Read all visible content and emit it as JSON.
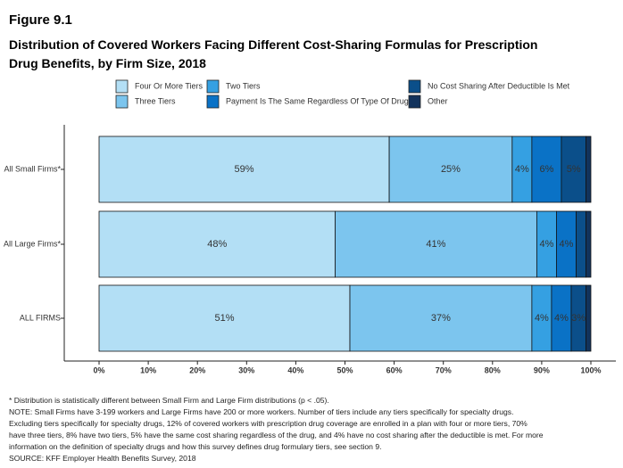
{
  "chart_data": {
    "type": "stacked-bar-horizontal",
    "figure_label": "Figure 9.1",
    "title": "Distribution of Covered Workers Facing Different Cost-Sharing Formulas for Prescription Drug Benefits, by Firm Size, 2018",
    "categories": [
      "All Small Firms*",
      "All Large Firms*",
      "ALL FIRMS"
    ],
    "series": [
      {
        "name": "Four Or More Tiers",
        "color": "#b3dff5",
        "values": [
          59,
          48,
          51
        ],
        "value_labels": [
          "59%",
          "48%",
          "51%"
        ]
      },
      {
        "name": "Three Tiers",
        "color": "#7cc5ee",
        "values": [
          25,
          41,
          37
        ],
        "value_labels": [
          "25%",
          "41%",
          "37%"
        ]
      },
      {
        "name": "Two Tiers",
        "color": "#35a0e2",
        "values": [
          4,
          4,
          4
        ],
        "value_labels": [
          "4%",
          "4%",
          "4%"
        ]
      },
      {
        "name": "Payment Is The Same Regardless Of Type Of Drug",
        "color": "#0a72c6",
        "values": [
          6,
          4,
          4
        ],
        "value_labels": [
          "6%",
          "4%",
          "4%"
        ]
      },
      {
        "name": "No Cost Sharing After Deductible Is Met",
        "color": "#0b4f8a",
        "values": [
          5,
          2,
          3
        ],
        "value_labels": [
          "5%",
          null,
          "3%"
        ]
      },
      {
        "name": "Other",
        "color": "#12335c",
        "values": [
          1,
          1,
          1
        ],
        "value_labels": [
          null,
          null,
          null
        ]
      }
    ],
    "xlim": [
      0,
      100
    ],
    "xticks": [
      {
        "value": 0,
        "label": "0%"
      },
      {
        "value": 10,
        "label": "10%"
      },
      {
        "value": 20,
        "label": "20%"
      },
      {
        "value": 30,
        "label": "30%"
      },
      {
        "value": 40,
        "label": "40%"
      },
      {
        "value": 50,
        "label": "50%"
      },
      {
        "value": 60,
        "label": "60%"
      },
      {
        "value": 70,
        "label": "70%"
      },
      {
        "value": 80,
        "label": "80%"
      },
      {
        "value": 90,
        "label": "90%"
      },
      {
        "value": 100,
        "label": "100%"
      }
    ],
    "notes": [
      "* Distribution is statistically different between Small Firm and Large Firm distributions (p < .05).",
      "NOTE: Small Firms have 3-199 workers and Large Firms have 200 or more workers. Number of tiers include any tiers specifically for specialty drugs. Excluding tiers specifically for specialty drugs, 12% of covered workers with prescription drug coverage are enrolled in a plan with four or more tiers, 70% have three tiers, 8% have two tiers, 5% have the same cost sharing regardless of the drug, and 4% have no cost sharing after the deductible is met. For more information on the definition of specialty drugs and how this survey defines drug formulary tiers, see section 9.",
      "SOURCE: KFF Employer Health Benefits Survey, 2018"
    ]
  }
}
